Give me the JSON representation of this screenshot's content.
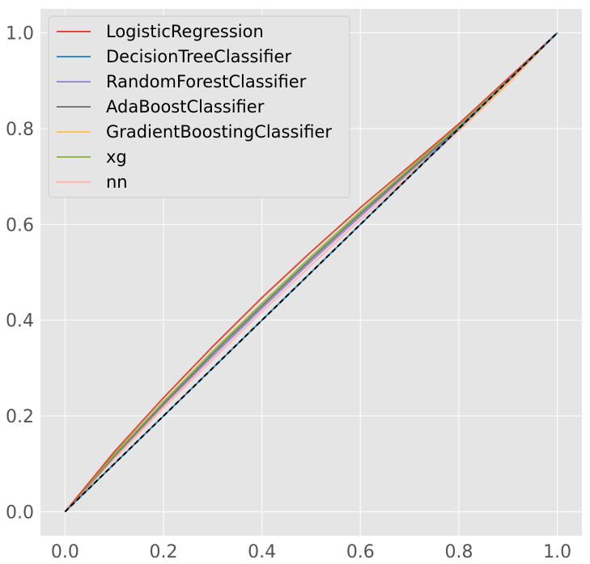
{
  "chart_data": {
    "type": "line",
    "title": "",
    "xlabel": "",
    "ylabel": "",
    "xlim": [
      -0.05,
      1.05
    ],
    "ylim": [
      -0.05,
      1.05
    ],
    "x_ticks": [
      0.0,
      0.2,
      0.4,
      0.6,
      0.8,
      1.0
    ],
    "y_ticks": [
      0.0,
      0.2,
      0.4,
      0.6,
      0.8,
      1.0
    ],
    "x_tick_labels": [
      "0.0",
      "0.2",
      "0.4",
      "0.6",
      "0.8",
      "1.0"
    ],
    "y_tick_labels": [
      "0.0",
      "0.2",
      "0.4",
      "0.6",
      "0.8",
      "1.0"
    ],
    "grid": true,
    "legend_position": "top-left",
    "background_color": "#e5e5e5",
    "series": [
      {
        "name": "LogisticRegression",
        "color": "#e24a33",
        "x": [
          0,
          0.1,
          0.2,
          0.3,
          0.4,
          0.5,
          0.6,
          0.7,
          0.8,
          0.9,
          1.0
        ],
        "y": [
          0,
          0.125,
          0.238,
          0.345,
          0.447,
          0.543,
          0.635,
          0.722,
          0.81,
          0.905,
          1.0
        ]
      },
      {
        "name": "DecisionTreeClassifier",
        "color": "#348abd",
        "x": [
          0,
          1.0
        ],
        "y": [
          0,
          1.0
        ]
      },
      {
        "name": "RandomForestClassifier",
        "color": "#988ed5",
        "x": [
          0,
          0.1,
          0.2,
          0.3,
          0.4,
          0.5,
          0.6,
          0.7,
          0.8,
          0.9,
          1.0
        ],
        "y": [
          0,
          0.115,
          0.223,
          0.325,
          0.425,
          0.523,
          0.617,
          0.71,
          0.8,
          0.9,
          1.0
        ]
      },
      {
        "name": "AdaBoostClassifier",
        "color": "#777777",
        "x": [
          0,
          0.1,
          0.2,
          0.3,
          0.4,
          0.5,
          0.6,
          0.7,
          0.8,
          0.9,
          1.0
        ],
        "y": [
          0,
          0.117,
          0.226,
          0.33,
          0.43,
          0.528,
          0.622,
          0.713,
          0.803,
          0.902,
          1.0
        ]
      },
      {
        "name": "GradientBoostingClassifier",
        "color": "#fbc15e",
        "x": [
          0,
          0.1,
          0.2,
          0.3,
          0.4,
          0.5,
          0.6,
          0.7,
          0.8,
          0.9,
          1.0
        ],
        "y": [
          0,
          0.113,
          0.222,
          0.325,
          0.425,
          0.523,
          0.617,
          0.708,
          0.798,
          0.895,
          1.0
        ]
      },
      {
        "name": "xg",
        "color": "#8eba42",
        "x": [
          0,
          0.1,
          0.2,
          0.3,
          0.4,
          0.5,
          0.6,
          0.7,
          0.8,
          0.9,
          1.0
        ],
        "y": [
          0,
          0.12,
          0.23,
          0.335,
          0.435,
          0.533,
          0.627,
          0.717,
          0.807,
          0.903,
          1.0
        ]
      },
      {
        "name": "nn",
        "color": "#ffb5b8",
        "x": [
          0,
          0.1,
          0.2,
          0.3,
          0.4,
          0.5,
          0.6,
          0.7,
          0.8,
          0.9,
          1.0
        ],
        "y": [
          0,
          0.11,
          0.217,
          0.318,
          0.418,
          0.515,
          0.61,
          0.703,
          0.795,
          0.893,
          1.0
        ]
      }
    ],
    "reference_line": {
      "color": "#000000",
      "style": "dashed",
      "x": [
        0,
        1.0
      ],
      "y": [
        0,
        1.0
      ]
    }
  }
}
